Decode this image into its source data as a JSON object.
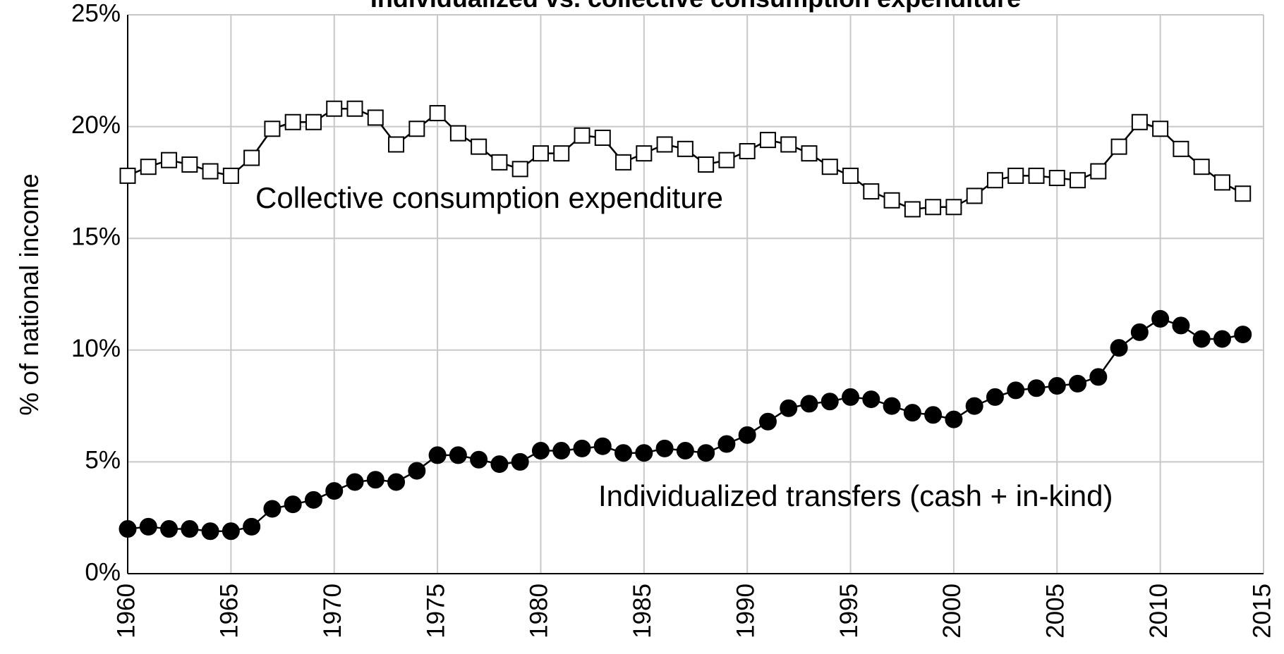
{
  "chart_data": {
    "type": "line",
    "title": "Individualized vs. collective consumption expenditure",
    "y_label": "% of national income",
    "x": [
      1960,
      1961,
      1962,
      1963,
      1964,
      1965,
      1966,
      1967,
      1968,
      1969,
      1970,
      1971,
      1972,
      1973,
      1974,
      1975,
      1976,
      1977,
      1978,
      1979,
      1980,
      1981,
      1982,
      1983,
      1984,
      1985,
      1986,
      1987,
      1988,
      1989,
      1990,
      1991,
      1992,
      1993,
      1994,
      1995,
      1996,
      1997,
      1998,
      1999,
      2000,
      2001,
      2002,
      2003,
      2004,
      2005,
      2006,
      2007,
      2008,
      2009,
      2010,
      2011,
      2012,
      2013,
      2014
    ],
    "series": [
      {
        "name": "Collective consumption expenditure",
        "color": "#000000",
        "marker": "square",
        "marker_fill": "#ffffff",
        "values": [
          17.8,
          18.2,
          18.5,
          18.3,
          18.0,
          17.8,
          18.6,
          19.9,
          20.2,
          20.2,
          20.8,
          20.8,
          20.4,
          19.2,
          19.9,
          20.6,
          19.7,
          19.1,
          18.4,
          18.1,
          18.8,
          18.8,
          19.6,
          19.5,
          18.4,
          18.8,
          19.2,
          19.0,
          18.3,
          18.5,
          18.9,
          19.4,
          19.2,
          18.8,
          18.2,
          17.8,
          17.1,
          16.7,
          16.3,
          16.4,
          16.4,
          16.9,
          17.6,
          17.8,
          17.8,
          17.7,
          17.6,
          18.0,
          19.1,
          20.2,
          19.9,
          19.0,
          18.2,
          17.5,
          17.0
        ]
      },
      {
        "name": "Individualized transfers (cash + in-kind)",
        "color": "#000000",
        "marker": "circle",
        "marker_fill": "#000000",
        "values": [
          2.0,
          2.1,
          2.0,
          2.0,
          1.9,
          1.9,
          2.1,
          2.9,
          3.1,
          3.3,
          3.7,
          4.1,
          4.2,
          4.1,
          4.6,
          5.3,
          5.3,
          5.1,
          4.9,
          5.0,
          5.5,
          5.5,
          5.6,
          5.7,
          5.4,
          5.4,
          5.6,
          5.5,
          5.4,
          5.8,
          6.2,
          6.8,
          7.4,
          7.6,
          7.7,
          7.9,
          7.8,
          7.5,
          7.2,
          7.1,
          6.9,
          7.5,
          7.9,
          8.2,
          8.3,
          8.4,
          8.5,
          8.8,
          10.1,
          10.8,
          11.4,
          11.1,
          10.5,
          10.5,
          10.7
        ]
      }
    ],
    "xlim": [
      1960,
      2015
    ],
    "xticks": [
      1960,
      1965,
      1970,
      1975,
      1980,
      1985,
      1990,
      1995,
      2000,
      2005,
      2010,
      2015
    ],
    "ylim": [
      0,
      25
    ],
    "yticks": [
      {
        "value": 0,
        "label": "0%"
      },
      {
        "value": 5,
        "label": "5%"
      },
      {
        "value": 10,
        "label": "10%"
      },
      {
        "value": 15,
        "label": "15%"
      },
      {
        "value": 20,
        "label": "20%"
      },
      {
        "value": 25,
        "label": "25%"
      }
    ],
    "grid": true
  }
}
